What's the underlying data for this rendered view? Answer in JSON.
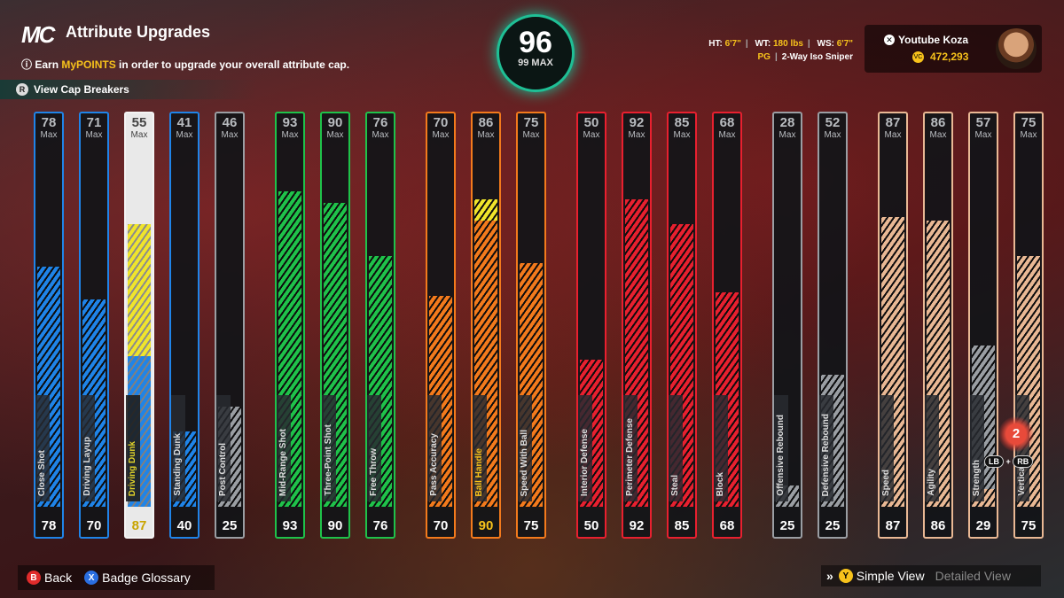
{
  "header": {
    "logo": "MC",
    "title": "Attribute Upgrades",
    "info_prefix": "Earn ",
    "info_highlight": "MyPOINTS",
    "info_suffix": " in order to upgrade your overall attribute cap.",
    "cap_breakers": "View Cap Breakers"
  },
  "overall": {
    "value": "96",
    "max": "99 MAX"
  },
  "profile": {
    "ht_label": "HT:",
    "ht": "6'7\"",
    "wt_label": "WT:",
    "wt": "180 lbs",
    "ws_label": "WS:",
    "ws": "6'7\"",
    "position": "PG",
    "archetype": "2-Way Iso Sniper"
  },
  "player": {
    "name": "Youtube Koza",
    "vc": "472,293"
  },
  "colors": {
    "blue": "#1f84e8",
    "green": "#1fc24a",
    "orange": "#f37a1c",
    "red": "#e8202f",
    "purple": "#7a3fd6",
    "tan": "#e9b894",
    "gray": "#9a9ea3"
  },
  "max_label": "Max",
  "attributes": [
    {
      "label": "Close Shot",
      "current": "78",
      "max": "78",
      "color": "blue",
      "fill": 0.67
    },
    {
      "label": "Driving Layup",
      "current": "70",
      "max": "71",
      "color": "blue",
      "fill": 0.58,
      "cap": 0.6
    },
    {
      "label": "Driving Dunk",
      "current": "87",
      "max": "55",
      "color": "blue",
      "fill": 0.42,
      "boost": 0.37,
      "selected": true
    },
    {
      "label": "Standing Dunk",
      "current": "40",
      "max": "41",
      "color": "blue",
      "fill": 0.21,
      "cap": 0.22
    },
    {
      "label": "Post Control",
      "current": "25",
      "max": "46",
      "color": "gray",
      "fill": 0.28
    },
    {
      "label": "Mid-Range Shot",
      "current": "93",
      "max": "93",
      "color": "green",
      "fill": 0.88
    },
    {
      "label": "Three-Point Shot",
      "current": "90",
      "max": "90",
      "color": "green",
      "fill": 0.85
    },
    {
      "label": "Free Throw",
      "current": "76",
      "max": "76",
      "color": "green",
      "fill": 0.7
    },
    {
      "label": "Pass Accuracy",
      "current": "70",
      "max": "70",
      "color": "orange",
      "fill": 0.59
    },
    {
      "label": "Ball Handle",
      "current": "90",
      "max": "86",
      "color": "orange",
      "fill": 0.8,
      "boost": 0.06,
      "highlight": true
    },
    {
      "label": "Speed With Ball",
      "current": "75",
      "max": "75",
      "color": "orange",
      "fill": 0.68
    },
    {
      "label": "Interior Defense",
      "current": "50",
      "max": "50",
      "color": "red",
      "fill": 0.41
    },
    {
      "label": "Perimeter Defense",
      "current": "92",
      "max": "92",
      "color": "red",
      "fill": 0.86
    },
    {
      "label": "Steal",
      "current": "85",
      "max": "85",
      "color": "red",
      "fill": 0.79
    },
    {
      "label": "Block",
      "current": "68",
      "max": "68",
      "color": "red",
      "fill": 0.6
    },
    {
      "label": "Offensive Rebound",
      "current": "25",
      "max": "28",
      "color": "gray",
      "fill": 0.06
    },
    {
      "label": "Defensive Rebound",
      "current": "25",
      "max": "52",
      "color": "gray",
      "fill": 0.37
    },
    {
      "label": "Speed",
      "current": "87",
      "max": "87",
      "color": "tan",
      "fill": 0.81
    },
    {
      "label": "Agility",
      "current": "86",
      "max": "86",
      "color": "tan",
      "fill": 0.8
    },
    {
      "label": "Strength",
      "current": "29",
      "max": "57",
      "color": "tan",
      "fill": 0.05,
      "gray_part": 0.4
    },
    {
      "label": "Vertical",
      "current": "75",
      "max": "75",
      "color": "tan",
      "fill": 0.7
    }
  ],
  "reset_badge": "2",
  "lb": "LB",
  "plus": "+",
  "rb": "RB",
  "footer": {
    "back_btn": "B",
    "back": "Back",
    "glossary_btn": "X",
    "glossary": "Badge Glossary",
    "simple_btn": "Y",
    "simple": "Simple View",
    "detailed": "Detailed View"
  }
}
